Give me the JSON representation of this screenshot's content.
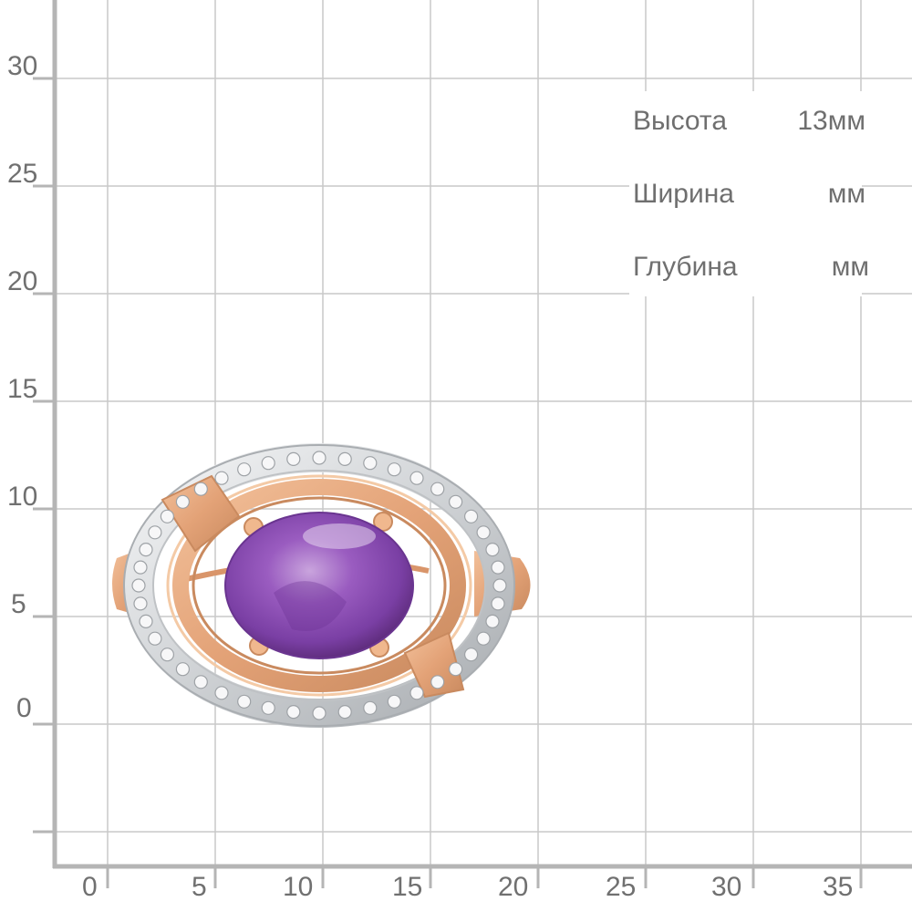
{
  "y_axis": {
    "ticks": [
      "30",
      "25",
      "20",
      "15",
      "10",
      "5",
      "0"
    ]
  },
  "x_axis": {
    "ticks": [
      "0",
      "5",
      "10",
      "15",
      "20",
      "25",
      "30",
      "35"
    ]
  },
  "specs": [
    {
      "label": "Высота",
      "value": "13мм"
    },
    {
      "label": "Ширина",
      "value": "мм"
    },
    {
      "label": "Глубина",
      "value": "мм"
    }
  ],
  "colors": {
    "gold": "#e7a77c",
    "gold_dark": "#c98a5f",
    "silver": "#d9dbdd",
    "amethyst": "#8a4fb0",
    "grid": "#c9c9c9",
    "axis": "#b5b5b5",
    "label": "#707070"
  }
}
